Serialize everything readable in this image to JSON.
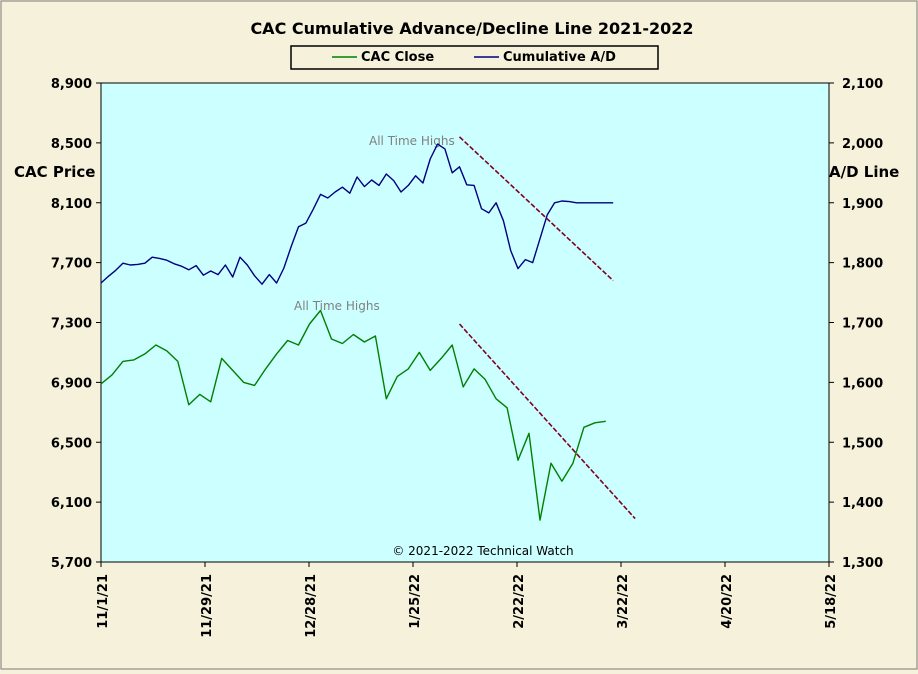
{
  "chart_data": {
    "type": "line",
    "title": "CAC Cumulative  Advance/Decline Line 2021-2022",
    "ylabel_left": "CAC Price",
    "ylabel_right": "A/D Line",
    "copyright": "© 2021-2022  Technical Watch",
    "legend": {
      "placement": "top-center",
      "items": [
        "CAC Close",
        "Cumulative A/D"
      ]
    },
    "annotations": [
      "All Time Highs",
      "All Time Highs"
    ],
    "x_ticks": [
      "11/1/21",
      "11/29/21",
      "12/28/21",
      "1/25/22",
      "2/22/22",
      "3/22/22",
      "4/20/22",
      "5/18/22"
    ],
    "y_left": {
      "min": 5700,
      "max": 8900,
      "ticks": [
        "5,700",
        "6,100",
        "6,500",
        "6,900",
        "7,300",
        "7,700",
        "8,100",
        "8,500",
        "8,900"
      ]
    },
    "y_right": {
      "min": 1300,
      "max": 2100,
      "ticks": [
        "1,300",
        "1,400",
        "1,500",
        "1,600",
        "1,700",
        "1,800",
        "1,900",
        "2,000",
        "2,100"
      ]
    },
    "grid": false,
    "colors": {
      "cac": "#008000",
      "ad": "#000080",
      "trend": "#800020",
      "plot_bg": "#ccffff",
      "page_bg": "#f5f1da"
    },
    "series": [
      {
        "name": "Cumulative A/D",
        "axis": "right",
        "x_days": [
          0,
          2,
          4,
          6,
          8,
          10,
          12,
          14,
          16,
          18,
          20,
          22,
          24,
          26,
          28,
          30,
          32,
          34,
          36,
          38,
          40,
          42,
          44,
          46,
          48,
          50,
          52,
          54,
          56,
          58,
          60,
          62,
          64,
          66,
          68,
          70,
          72,
          74,
          76,
          78,
          80,
          82,
          84,
          86,
          88,
          90,
          92,
          94,
          96,
          98,
          100,
          102,
          104,
          106,
          108,
          110,
          112,
          114,
          116,
          118,
          120,
          122,
          124,
          126,
          128,
          130,
          132,
          134,
          136,
          138,
          140
        ],
        "values": [
          1766,
          1777,
          1787,
          1799,
          1796,
          1797,
          1799,
          1809,
          1807,
          1804,
          1798,
          1794,
          1788,
          1795,
          1779,
          1786,
          1780,
          1796,
          1776,
          1809,
          1796,
          1778,
          1764,
          1780,
          1766,
          1791,
          1827,
          1860,
          1866,
          1889,
          1914,
          1908,
          1918,
          1926,
          1916,
          1943,
          1927,
          1938,
          1929,
          1948,
          1937,
          1918,
          1929,
          1945,
          1933,
          1973,
          1998,
          1990,
          1950,
          1960,
          1930,
          1929,
          1890,
          1883,
          1900,
          1870,
          1820,
          1790,
          1805,
          1800,
          1840,
          1880,
          1900,
          1903,
          1902,
          1900,
          1900,
          1900,
          1900,
          1900,
          1900
        ]
      },
      {
        "name": "CAC Close",
        "axis": "left",
        "x_days": [
          0,
          3,
          6,
          9,
          12,
          15,
          18,
          21,
          24,
          27,
          30,
          33,
          36,
          39,
          42,
          45,
          48,
          51,
          54,
          57,
          60,
          63,
          66,
          69,
          72,
          75,
          78,
          81,
          84,
          87,
          90,
          93,
          96,
          99,
          102,
          105,
          108,
          111,
          114,
          117,
          120,
          123,
          126,
          129,
          132,
          135,
          138
        ],
        "values": [
          6890,
          6950,
          7040,
          7050,
          7090,
          7150,
          7110,
          7040,
          6750,
          6820,
          6770,
          7060,
          6980,
          6900,
          6880,
          6990,
          7090,
          7180,
          7150,
          7290,
          7380,
          7190,
          7160,
          7220,
          7170,
          7210,
          6790,
          6940,
          6990,
          7100,
          6980,
          7060,
          7150,
          6870,
          6990,
          6920,
          6790,
          6730,
          6380,
          6560,
          5980,
          6360,
          6240,
          6360,
          6600,
          6630,
          6640
        ]
      }
    ],
    "trendlines": [
      {
        "axis": "right",
        "from": {
          "x_day": 98,
          "y": 2010
        },
        "to": {
          "x_day": 140,
          "y": 1770
        }
      },
      {
        "axis": "left",
        "from": {
          "x_day": 98,
          "y": 7290
        },
        "to": {
          "x_day": 146,
          "y": 5990
        }
      }
    ]
  }
}
